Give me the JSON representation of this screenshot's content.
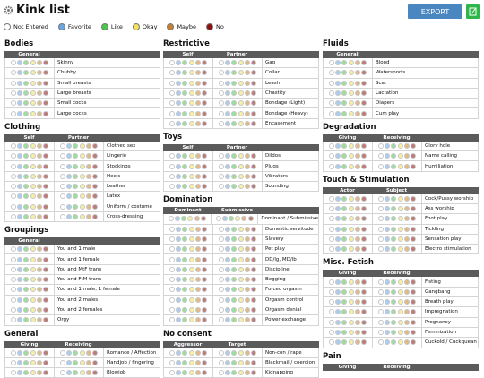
{
  "header": {
    "title": "Kink list",
    "export_button": "EXPORT"
  },
  "legend": [
    {
      "label": "Not Entered",
      "color": "#ffffff"
    },
    {
      "label": "Favorite",
      "color": "#6aa6e0"
    },
    {
      "label": "Like",
      "color": "#48c84a"
    },
    {
      "label": "Okay",
      "color": "#f2e35a"
    },
    {
      "label": "Maybe",
      "color": "#c8802a"
    },
    {
      "label": "No",
      "color": "#8b1010"
    }
  ],
  "columns": [
    {
      "sections": [
        {
          "title": "Bodies",
          "headers": [
            "General"
          ],
          "rows": [
            "Skinny",
            "Chubby",
            "Small breasts",
            "Large breasts",
            "Small cocks",
            "Large cocks"
          ]
        },
        {
          "title": "Clothing",
          "headers": [
            "Self",
            "Partner"
          ],
          "rows": [
            "Clothed sex",
            "Lingerie",
            "Stockings",
            "Heels",
            "Leather",
            "Latex",
            "Uniform / costume",
            "Cross-dressing"
          ]
        },
        {
          "title": "Groupings",
          "headers": [
            "General"
          ],
          "rows": [
            "You and 1 male",
            "You and 1 female",
            "You and MtF trans",
            "You and FtM trans",
            "You and 1 male, 1 female",
            "You and 2 males",
            "You and 2 females",
            "Orgy"
          ]
        },
        {
          "title": "General",
          "headers": [
            "Giving",
            "Receiving"
          ],
          "rows": [
            "Romance / Affection",
            "Handjob / fingering",
            "Blowjob"
          ]
        }
      ]
    },
    {
      "sections": [
        {
          "title": "Restrictive",
          "headers": [
            "Self",
            "Partner"
          ],
          "rows": [
            "Gag",
            "Collar",
            "Leash",
            "Chastity",
            "Bondage (Light)",
            "Bondage (Heavy)",
            "Encasement"
          ]
        },
        {
          "title": "Toys",
          "headers": [
            "Self",
            "Partner"
          ],
          "rows": [
            "Dildos",
            "Plugs",
            "Vibrators",
            "Sounding"
          ]
        },
        {
          "title": "Domination",
          "headers": [
            "Dominant",
            "Submissive"
          ],
          "rows": [
            "Dominant / Submissive",
            "Domestic servitude",
            "Slavery",
            "Pet play",
            "DD/lg, MD/lb",
            "Discipline",
            "Begging",
            "Forced orgasm",
            "Orgasm control",
            "Orgasm denial",
            "Power exchange"
          ]
        },
        {
          "title": "No consent",
          "headers": [
            "Aggressor",
            "Target"
          ],
          "rows": [
            "Non-con / rape",
            "Blackmail / coercion",
            "Kidnapping"
          ]
        }
      ]
    },
    {
      "sections": [
        {
          "title": "Fluids",
          "headers": [
            "General"
          ],
          "rows": [
            "Blood",
            "Watersports",
            "Scat",
            "Lactation",
            "Diapers",
            "Cum play"
          ]
        },
        {
          "title": "Degradation",
          "headers": [
            "Giving",
            "Receiving"
          ],
          "rows": [
            "Glory hole",
            "Name calling",
            "Humiliation"
          ]
        },
        {
          "title": "Touch & Stimulation",
          "headers": [
            "Actor",
            "Subject"
          ],
          "rows": [
            "Cock/Pussy worship",
            "Ass worship",
            "Foot play",
            "Tickling",
            "Sensation play",
            "Electro stimulation"
          ]
        },
        {
          "title": "Misc. Fetish",
          "headers": [
            "Giving",
            "Receiving"
          ],
          "rows": [
            "Fisting",
            "Gangbang",
            "Breath play",
            "Impregnation",
            "Pregnancy",
            "Feminization",
            "Cuckold / Cuckquean"
          ]
        },
        {
          "title": "Pain",
          "headers": [
            "Giving",
            "Receiving"
          ],
          "rows": []
        }
      ]
    }
  ]
}
